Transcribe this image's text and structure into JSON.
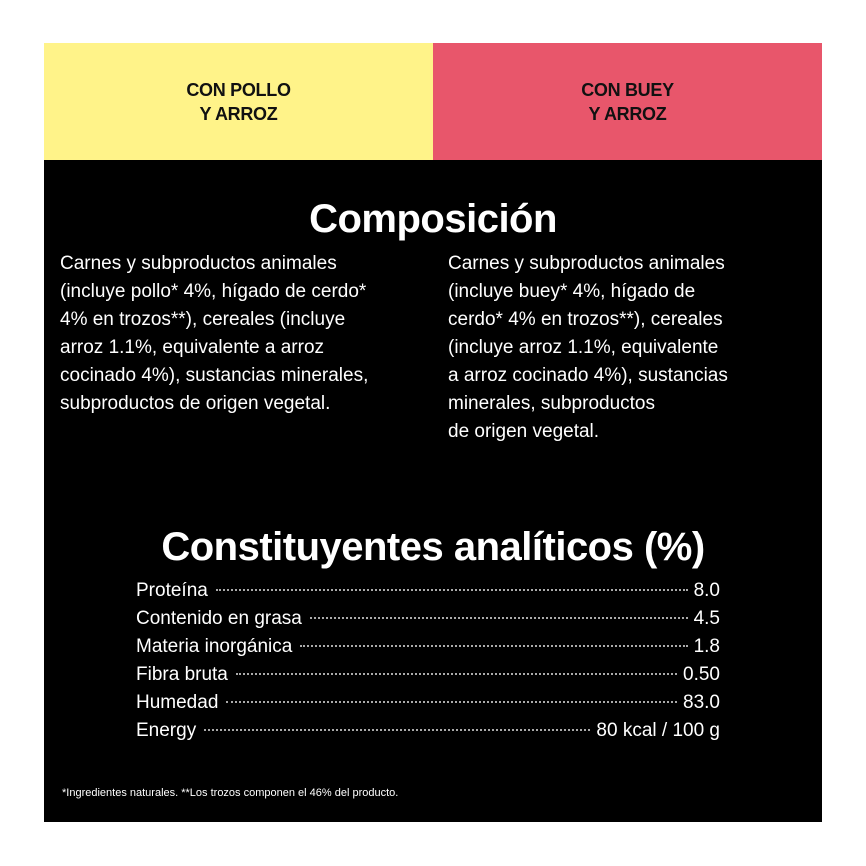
{
  "header": {
    "left_line1": "CON POLLO",
    "left_line2": "Y ARROZ",
    "right_line1": "CON BUEY",
    "right_line2": "Y ARROZ",
    "left_color": "#fff389",
    "right_color": "#e8566b"
  },
  "composicion": {
    "title": "Composición",
    "left_lines": [
      "Carnes y subproductos animales",
      "(incluye pollo* 4%, hígado de cerdo*",
      "4% en trozos**), cereales (incluye",
      "arroz 1.1%, equivalente a arroz",
      "cocinado 4%), sustancias minerales,",
      "subproductos de origen vegetal."
    ],
    "right_lines": [
      "Carnes y subproductos animales",
      "(incluye buey* 4%, hígado de",
      "cerdo* 4% en trozos**), cereales",
      "(incluye arroz 1.1%, equivalente",
      "a arroz cocinado 4%), sustancias",
      "minerales, subproductos",
      "de origen vegetal."
    ]
  },
  "analiticos": {
    "title": "Constituyentes analíticos (%)",
    "rows": [
      {
        "name": "Proteína",
        "value": "8.0"
      },
      {
        "name": "Contenido en grasa",
        "value": "4.5"
      },
      {
        "name": "Materia inorgánica",
        "value": "1.8"
      },
      {
        "name": "Fibra bruta",
        "value": "0.50"
      },
      {
        "name": "Humedad",
        "value": "83.0"
      },
      {
        "name": "Energy",
        "value": "80 kcal / 100 g"
      }
    ]
  },
  "footnote": "*Ingredientes naturales. **Los trozos componen el 46% del producto."
}
